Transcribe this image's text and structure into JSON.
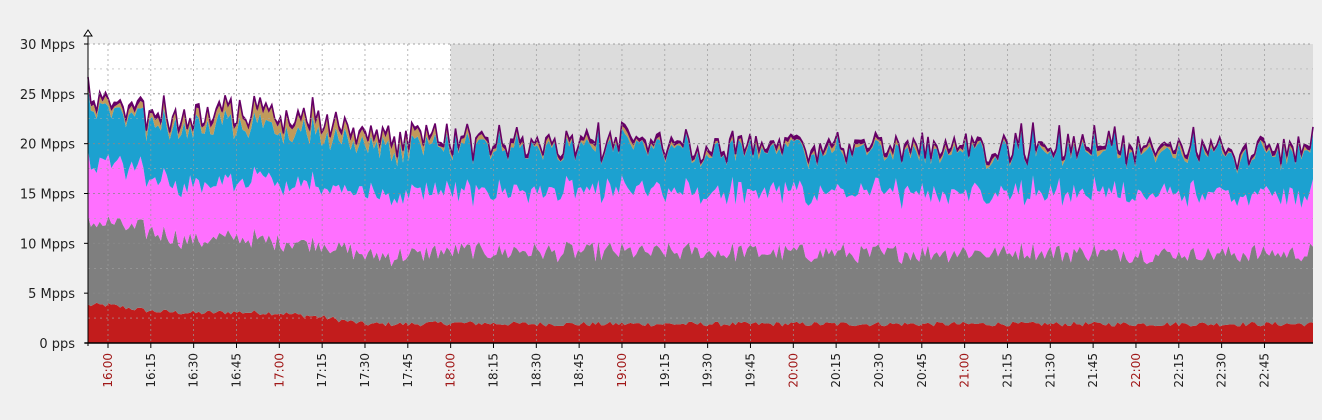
{
  "chart_data": {
    "type": "area",
    "stacked": true,
    "y_unit_labels": [
      "0 pps",
      "5 Mpps",
      "10 Mpps",
      "15 Mpps",
      "20 Mpps",
      "25 Mpps",
      "30 Mpps"
    ],
    "ylim": [
      0,
      30
    ],
    "y_ticks": [
      0,
      5,
      10,
      15,
      20,
      25,
      30
    ],
    "x_range": [
      "15:53",
      "23:02"
    ],
    "x_ticks": [
      "16:00",
      "16:15",
      "16:30",
      "16:45",
      "17:00",
      "17:15",
      "17:30",
      "17:45",
      "18:00",
      "18:15",
      "18:30",
      "18:45",
      "19:00",
      "19:15",
      "19:30",
      "19:45",
      "20:00",
      "20:15",
      "20:30",
      "20:45",
      "21:00",
      "21:15",
      "21:30",
      "21:45",
      "22:00",
      "22:15",
      "22:30",
      "22:45"
    ],
    "highlighted_ticks": [
      "16:00",
      "17:00",
      "18:00",
      "19:00",
      "20:00",
      "21:00",
      "22:00"
    ],
    "grid": true,
    "shaded_region": [
      "18:00",
      "23:02"
    ],
    "series_colors": [
      "#c21c1c",
      "#7f7f7f",
      "#ff70ff",
      "#1ca1d0",
      "#c09a5a",
      "#660066"
    ],
    "series": [
      {
        "name": "",
        "color": "#c21c1c",
        "x": [
          "16:00",
          "16:15",
          "16:30",
          "16:45",
          "17:00",
          "17:15",
          "17:30",
          "17:45",
          "18:00",
          "18:30",
          "19:00",
          "19:30",
          "20:00",
          "20:30",
          "21:00",
          "21:30",
          "22:00",
          "22:30",
          "23:00"
        ],
        "values": [
          3.8,
          3.2,
          3.0,
          3.1,
          3.0,
          2.6,
          1.9,
          1.9,
          2.0,
          1.9,
          1.9,
          1.9,
          1.9,
          1.9,
          1.9,
          1.9,
          1.9,
          1.9,
          1.9
        ]
      },
      {
        "name": "",
        "color": "#7f7f7f",
        "x": [
          "16:00",
          "16:15",
          "16:30",
          "16:45",
          "17:00",
          "17:15",
          "17:30",
          "17:45",
          "18:00",
          "18:30",
          "19:00",
          "19:30",
          "20:00",
          "20:30",
          "21:00",
          "21:30",
          "22:00",
          "22:30",
          "23:00"
        ],
        "values": [
          8.2,
          8.0,
          7.2,
          7.5,
          7.2,
          7.4,
          6.8,
          6.9,
          7.2,
          7.3,
          7.2,
          7.2,
          7.1,
          7.1,
          7.2,
          7.2,
          7.1,
          7.1,
          7.1
        ]
      },
      {
        "name": "",
        "color": "#ff70ff",
        "x": [
          "16:00",
          "16:15",
          "16:30",
          "16:45",
          "17:00",
          "17:15",
          "17:30",
          "17:45",
          "18:00",
          "18:30",
          "19:00",
          "19:30",
          "20:00",
          "20:30",
          "21:00",
          "21:30",
          "22:00",
          "22:30",
          "23:00"
        ],
        "values": [
          6.0,
          5.5,
          5.8,
          5.6,
          6.0,
          5.8,
          6.1,
          6.2,
          6.0,
          6.0,
          6.2,
          6.1,
          6.0,
          6.2,
          6.1,
          6.1,
          6.2,
          6.1,
          6.1
        ]
      },
      {
        "name": "",
        "color": "#1ca1d0",
        "x": [
          "16:00",
          "16:15",
          "16:30",
          "16:45",
          "17:00",
          "17:15",
          "17:30",
          "17:45",
          "18:00",
          "18:30",
          "19:00",
          "19:30",
          "20:00",
          "20:30",
          "21:00",
          "21:30",
          "22:00",
          "22:30",
          "23:00"
        ],
        "values": [
          5.6,
          5.4,
          5.6,
          5.6,
          5.4,
          5.2,
          4.8,
          4.6,
          4.4,
          4.2,
          4.2,
          4.1,
          4.3,
          4.0,
          4.3,
          4.1,
          4.2,
          4.1,
          4.3
        ]
      },
      {
        "name": "",
        "color": "#c09a5a",
        "x": [
          "16:00",
          "16:15",
          "16:30",
          "16:45",
          "17:00",
          "17:15",
          "17:30",
          "17:45",
          "18:00",
          "18:30",
          "19:00",
          "19:30",
          "20:00",
          "20:30",
          "21:00",
          "21:30",
          "22:00",
          "22:30",
          "23:00"
        ],
        "values": [
          0.4,
          0.6,
          0.8,
          1.1,
          1.2,
          1.2,
          1.0,
          0.8,
          0.3,
          0.2,
          0.2,
          0.2,
          0.2,
          0.2,
          0.2,
          0.2,
          0.2,
          0.2,
          0.2
        ]
      },
      {
        "name": "",
        "color": "#660066",
        "x": [
          "16:00",
          "16:15",
          "16:30",
          "16:45",
          "17:00",
          "17:15",
          "17:30",
          "17:45",
          "18:00",
          "18:30",
          "19:00",
          "19:30",
          "20:00",
          "20:30",
          "21:00",
          "21:30",
          "22:00",
          "22:30",
          "23:00"
        ],
        "values": [
          0.3,
          0.3,
          0.3,
          0.3,
          0.3,
          0.3,
          0.3,
          0.3,
          0.3,
          0.3,
          0.3,
          0.3,
          0.3,
          0.3,
          0.3,
          0.3,
          0.3,
          0.3,
          0.3
        ]
      }
    ]
  }
}
